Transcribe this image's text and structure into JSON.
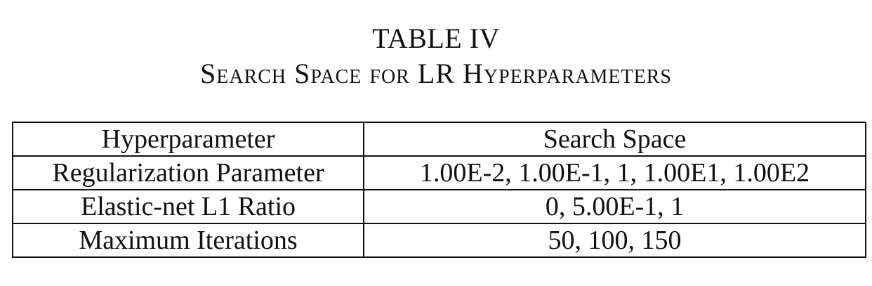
{
  "caption": {
    "number": "TABLE IV",
    "title": "Search Space for LR Hyperparameters"
  },
  "table": {
    "headers": [
      "Hyperparameter",
      "Search Space"
    ],
    "rows": [
      [
        "Regularization Parameter",
        "1.00E-2, 1.00E-1, 1, 1.00E1, 1.00E2"
      ],
      [
        "Elastic-net L1 Ratio",
        "0, 5.00E-1, 1"
      ],
      [
        "Maximum Iterations",
        "50, 100, 150"
      ]
    ]
  }
}
